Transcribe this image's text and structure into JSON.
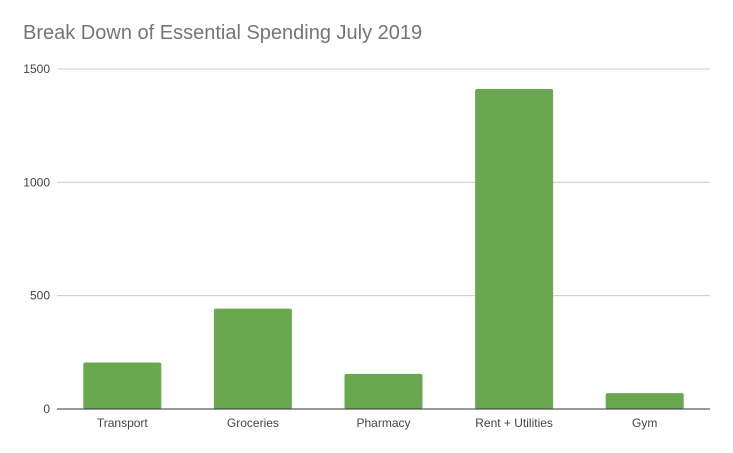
{
  "chart_data": {
    "type": "bar",
    "title": "Break Down of Essential Spending July 2019",
    "categories": [
      "Transport",
      "Groceries",
      "Pharmacy",
      "Rent + Utilities",
      "Gym"
    ],
    "series": [
      {
        "values": [
          205,
          443,
          155,
          1412,
          70
        ]
      }
    ],
    "ylim": [
      0,
      1500
    ],
    "yticks": [
      0,
      500,
      1000,
      1500
    ],
    "ytick_labels": [
      "0",
      "500",
      "1000",
      "1500"
    ],
    "xlabel": "",
    "ylabel": "",
    "grid": true,
    "legend": "none",
    "colors": {
      "bar": "#6aa84f",
      "gridline": "#cccccc",
      "axis": "#333333"
    }
  }
}
